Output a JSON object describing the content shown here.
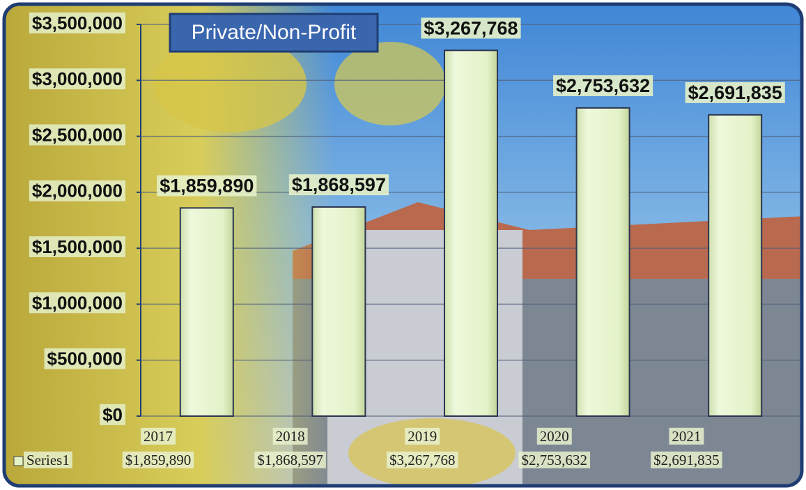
{
  "chart_data": {
    "type": "bar",
    "title": "Private/Non-Profit",
    "categories": [
      "2017",
      "2018",
      "2019",
      "2020",
      "2021"
    ],
    "series": [
      {
        "name": "Series1",
        "color": "#e4f2c8",
        "values": [
          1859890,
          1868597,
          3267768,
          2753632,
          2691835
        ],
        "value_labels": [
          "$1,859,890",
          "$1,868,597",
          "$3,267,768",
          "$2,753,632",
          "$2,691,835"
        ]
      }
    ],
    "ylim": [
      0,
      3500000
    ],
    "yticks": [
      {
        "value": 0,
        "label": "$0"
      },
      {
        "value": 500000,
        "label": "$500,000"
      },
      {
        "value": 1000000,
        "label": "$1,000,000"
      },
      {
        "value": 1500000,
        "label": "$1,500,000"
      },
      {
        "value": 2000000,
        "label": "$2,000,000"
      },
      {
        "value": 2500000,
        "label": "$2,500,000"
      },
      {
        "value": 3000000,
        "label": "$3,000,000"
      },
      {
        "value": 3500000,
        "label": "$3,500,000"
      }
    ],
    "grid": true,
    "data_table": true
  }
}
